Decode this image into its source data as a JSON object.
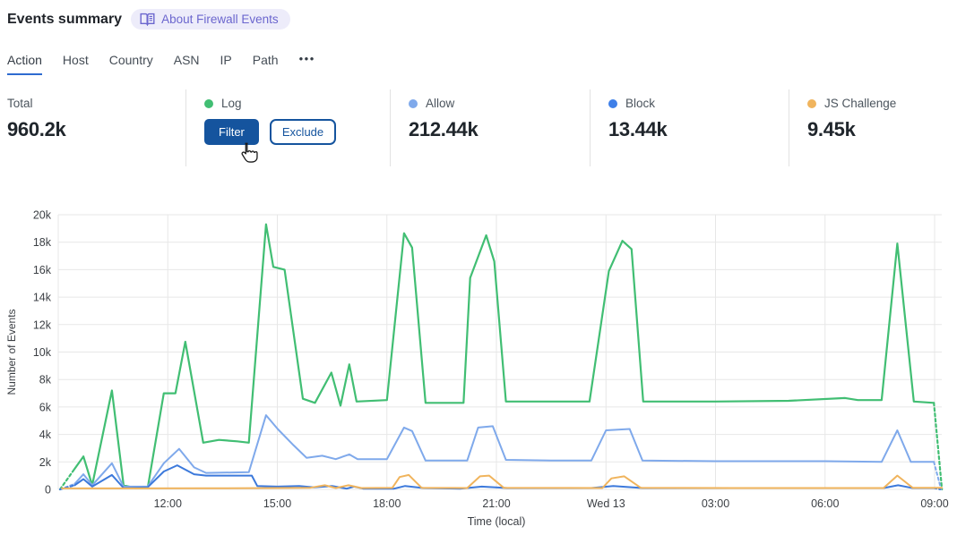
{
  "header": {
    "title": "Events summary",
    "about_badge": "About Firewall Events"
  },
  "tabs": {
    "items": [
      {
        "label": "Action",
        "active": true
      },
      {
        "label": "Host",
        "active": false
      },
      {
        "label": "Country",
        "active": false
      },
      {
        "label": "ASN",
        "active": false
      },
      {
        "label": "IP",
        "active": false
      },
      {
        "label": "Path",
        "active": false
      }
    ],
    "more_label": "•••"
  },
  "stats": {
    "columns": [
      {
        "label": "Total",
        "value": "960.2k"
      },
      {
        "label": "Log",
        "dot_color": "#41be73",
        "buttons": [
          {
            "label": "Filter",
            "style": "primary"
          },
          {
            "label": "Exclude",
            "style": "outline"
          }
        ]
      },
      {
        "label": "Allow",
        "value": "212.44k",
        "dot_color": "#7fa9eb"
      },
      {
        "label": "Block",
        "value": "13.44k",
        "dot_color": "#3e7fe8"
      },
      {
        "label": "JS Challenge",
        "value": "9.45k",
        "dot_color": "#f0b45d"
      }
    ]
  },
  "chart_data": {
    "type": "line",
    "title": "",
    "xlabel": "Time (local)",
    "ylabel": "Number of Events",
    "x_unit": "hours after 09:00 (local), spanning into Wed 13",
    "value_unit": "thousands of events (k)",
    "xlim": [
      0,
      24.2
    ],
    "ylim_k": [
      0,
      20
    ],
    "grid": true,
    "legend_position": "none (stat cards above act as legend)",
    "y_ticks": [
      {
        "v": 0,
        "label": "0"
      },
      {
        "v": 2,
        "label": "2k"
      },
      {
        "v": 4,
        "label": "4k"
      },
      {
        "v": 6,
        "label": "6k"
      },
      {
        "v": 8,
        "label": "8k"
      },
      {
        "v": 10,
        "label": "10k"
      },
      {
        "v": 12,
        "label": "12k"
      },
      {
        "v": 14,
        "label": "14k"
      },
      {
        "v": 16,
        "label": "16k"
      },
      {
        "v": 18,
        "label": "18k"
      },
      {
        "v": 20,
        "label": "20k"
      }
    ],
    "x_ticks": [
      {
        "t": 3,
        "label": "12:00"
      },
      {
        "t": 6,
        "label": "15:00"
      },
      {
        "t": 9,
        "label": "18:00"
      },
      {
        "t": 12,
        "label": "21:00"
      },
      {
        "t": 15,
        "label": "Wed 13"
      },
      {
        "t": 18,
        "label": "03:00"
      },
      {
        "t": 21,
        "label": "06:00"
      },
      {
        "t": 24,
        "label": "09:00"
      }
    ],
    "series": [
      {
        "name": "Log",
        "color": "#41be73",
        "width": 2.2,
        "dashed_lead": [
          [
            0.05,
            0
          ],
          [
            0.45,
            1.5
          ]
        ],
        "points": [
          [
            0.45,
            1.5
          ],
          [
            0.69,
            2.4
          ],
          [
            0.93,
            0.3
          ],
          [
            1.47,
            7.2
          ],
          [
            1.79,
            0.3
          ],
          [
            2.1,
            0.1
          ],
          [
            2.45,
            0.1
          ],
          [
            2.89,
            7.0
          ],
          [
            3.21,
            7.0
          ],
          [
            3.48,
            10.75
          ],
          [
            3.97,
            3.4
          ],
          [
            4.4,
            3.6
          ],
          [
            4.9,
            3.5
          ],
          [
            5.22,
            3.4
          ],
          [
            5.69,
            19.3
          ],
          [
            5.89,
            16.2
          ],
          [
            6.2,
            16.0
          ],
          [
            6.7,
            6.6
          ],
          [
            7.03,
            6.3
          ],
          [
            7.48,
            8.5
          ],
          [
            7.73,
            6.1
          ],
          [
            7.97,
            9.1
          ],
          [
            8.17,
            6.4
          ],
          [
            9.0,
            6.5
          ],
          [
            9.47,
            18.65
          ],
          [
            9.69,
            17.6
          ],
          [
            10.06,
            6.3
          ],
          [
            11.1,
            6.3
          ],
          [
            11.28,
            15.4
          ],
          [
            11.72,
            18.5
          ],
          [
            11.94,
            16.6
          ],
          [
            12.26,
            6.4
          ],
          [
            13.5,
            6.4
          ],
          [
            14.55,
            6.4
          ],
          [
            15.08,
            15.9
          ],
          [
            15.45,
            18.1
          ],
          [
            15.7,
            17.5
          ],
          [
            16.02,
            6.4
          ],
          [
            18.0,
            6.4
          ],
          [
            20.0,
            6.45
          ],
          [
            21.55,
            6.65
          ],
          [
            21.9,
            6.5
          ],
          [
            22.55,
            6.5
          ],
          [
            22.98,
            17.9
          ],
          [
            23.43,
            6.4
          ],
          [
            23.98,
            6.3
          ]
        ],
        "dashed_tail": [
          [
            23.98,
            6.3
          ],
          [
            24.2,
            0
          ]
        ]
      },
      {
        "name": "Allow",
        "color": "#7fa9eb",
        "width": 2,
        "dashed_lead": [
          [
            0.05,
            0
          ],
          [
            0.45,
            0.4
          ]
        ],
        "points": [
          [
            0.45,
            0.4
          ],
          [
            0.69,
            1.1
          ],
          [
            0.93,
            0.3
          ],
          [
            1.47,
            1.9
          ],
          [
            1.79,
            0.2
          ],
          [
            2.45,
            0.2
          ],
          [
            2.89,
            1.9
          ],
          [
            3.31,
            2.95
          ],
          [
            3.72,
            1.6
          ],
          [
            4.05,
            1.2
          ],
          [
            5.22,
            1.25
          ],
          [
            5.69,
            5.4
          ],
          [
            6.01,
            4.4
          ],
          [
            6.45,
            3.2
          ],
          [
            6.8,
            2.3
          ],
          [
            7.23,
            2.45
          ],
          [
            7.6,
            2.2
          ],
          [
            7.97,
            2.55
          ],
          [
            8.2,
            2.2
          ],
          [
            9.0,
            2.2
          ],
          [
            9.47,
            4.5
          ],
          [
            9.69,
            4.25
          ],
          [
            10.06,
            2.1
          ],
          [
            11.2,
            2.1
          ],
          [
            11.5,
            4.5
          ],
          [
            11.9,
            4.6
          ],
          [
            12.26,
            2.15
          ],
          [
            13.5,
            2.1
          ],
          [
            14.6,
            2.1
          ],
          [
            15.0,
            4.3
          ],
          [
            15.65,
            4.4
          ],
          [
            16.0,
            2.1
          ],
          [
            18.0,
            2.05
          ],
          [
            21.0,
            2.05
          ],
          [
            22.55,
            2.0
          ],
          [
            22.98,
            4.3
          ],
          [
            23.35,
            2.0
          ],
          [
            23.98,
            2.0
          ]
        ],
        "dashed_tail": [
          [
            23.98,
            2.0
          ],
          [
            24.18,
            0
          ]
        ]
      },
      {
        "name": "Block",
        "color": "#3c79db",
        "width": 2,
        "dashed_lead": [
          [
            0.05,
            0
          ],
          [
            0.45,
            0.3
          ]
        ],
        "points": [
          [
            0.45,
            0.3
          ],
          [
            0.69,
            0.75
          ],
          [
            0.93,
            0.2
          ],
          [
            1.47,
            1.05
          ],
          [
            1.79,
            0.1
          ],
          [
            2.45,
            0.15
          ],
          [
            2.89,
            1.3
          ],
          [
            3.26,
            1.75
          ],
          [
            3.72,
            1.1
          ],
          [
            4.05,
            1.0
          ],
          [
            5.3,
            1.0
          ],
          [
            5.45,
            0.25
          ],
          [
            6.0,
            0.2
          ],
          [
            6.6,
            0.25
          ],
          [
            7.0,
            0.15
          ],
          [
            7.5,
            0.25
          ],
          [
            7.9,
            0.05
          ],
          [
            8.1,
            0.2
          ],
          [
            8.35,
            0.05
          ],
          [
            9.2,
            0.05
          ],
          [
            9.5,
            0.25
          ],
          [
            10.0,
            0.1
          ],
          [
            11.0,
            0.05
          ],
          [
            11.6,
            0.2
          ],
          [
            12.3,
            0.1
          ],
          [
            14.6,
            0.1
          ],
          [
            15.2,
            0.25
          ],
          [
            16.0,
            0.1
          ],
          [
            18.0,
            0.1
          ],
          [
            21.0,
            0.1
          ],
          [
            22.6,
            0.1
          ],
          [
            23.0,
            0.3
          ],
          [
            23.4,
            0.1
          ],
          [
            23.98,
            0.1
          ]
        ],
        "dashed_tail": [
          [
            23.98,
            0.1
          ],
          [
            24.15,
            0
          ]
        ]
      },
      {
        "name": "JS Challenge",
        "color": "#f0b45d",
        "width": 2,
        "dashed_lead": [],
        "points": [
          [
            0.1,
            0.07
          ],
          [
            2.0,
            0.07
          ],
          [
            4.0,
            0.08
          ],
          [
            6.0,
            0.1
          ],
          [
            6.9,
            0.12
          ],
          [
            7.3,
            0.3
          ],
          [
            7.6,
            0.1
          ],
          [
            7.95,
            0.3
          ],
          [
            8.3,
            0.1
          ],
          [
            9.15,
            0.12
          ],
          [
            9.35,
            0.9
          ],
          [
            9.6,
            1.05
          ],
          [
            9.95,
            0.12
          ],
          [
            11.2,
            0.1
          ],
          [
            11.55,
            0.95
          ],
          [
            11.8,
            1.0
          ],
          [
            12.2,
            0.12
          ],
          [
            14.9,
            0.1
          ],
          [
            15.15,
            0.8
          ],
          [
            15.5,
            0.95
          ],
          [
            15.95,
            0.12
          ],
          [
            18.5,
            0.1
          ],
          [
            22.6,
            0.1
          ],
          [
            22.98,
            1.0
          ],
          [
            23.4,
            0.12
          ],
          [
            24.2,
            0.12
          ]
        ],
        "dashed_tail": []
      }
    ]
  },
  "cursor": {
    "type": "hand-pointer",
    "over": "Filter button"
  },
  "colors": {
    "accent_blue": "#15549e",
    "tab_underline": "#2e6bd0",
    "badge_bg": "#edecfa",
    "badge_text": "#6b66ce",
    "gridline": "#e7e7e7",
    "tick_text": "#3b3f44"
  }
}
